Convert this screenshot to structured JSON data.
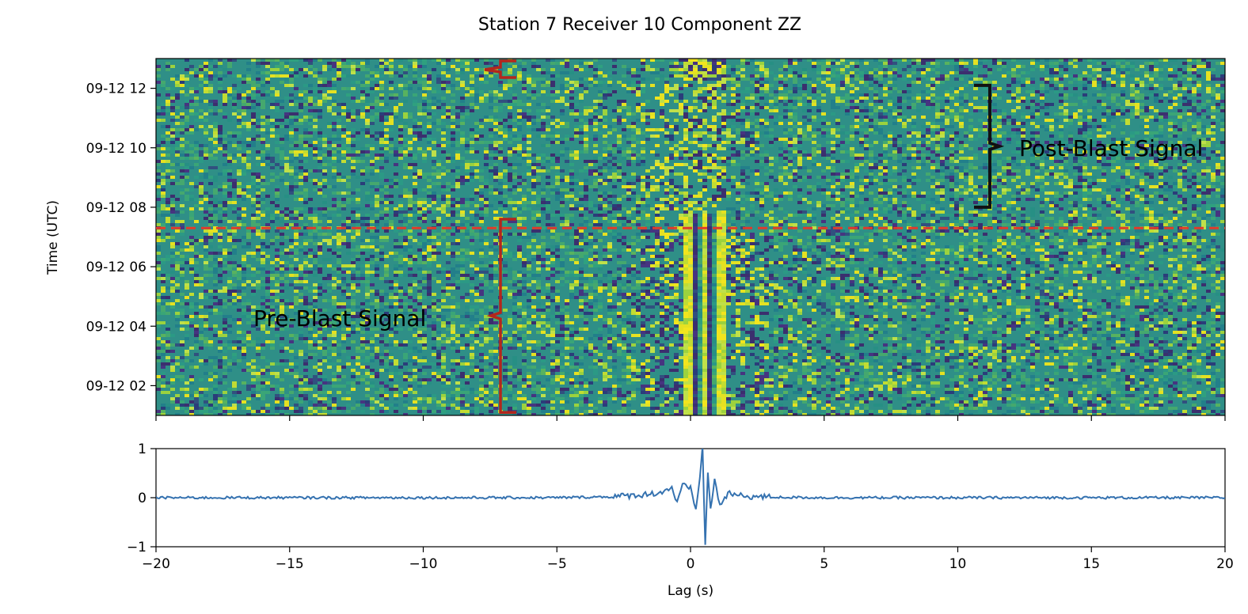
{
  "chart_data": [
    {
      "type": "heatmap",
      "title": "Station 7 Receiver 10 Component ZZ",
      "xlabel": "",
      "ylabel": "Time (UTC)",
      "xlim": [
        -20,
        20
      ],
      "ylim_hours": [
        1.0,
        13.0
      ],
      "x_ticks": [
        -20,
        -15,
        -10,
        -5,
        0,
        5,
        10,
        15,
        20
      ],
      "y_ticks": [
        {
          "hour": 2,
          "label": "09-12 02"
        },
        {
          "hour": 4,
          "label": "09-12 04"
        },
        {
          "hour": 6,
          "label": "09-12 06"
        },
        {
          "hour": 8,
          "label": "09-12 08"
        },
        {
          "hour": 10,
          "label": "09-12 10"
        },
        {
          "hour": 12,
          "label": "09-12 12"
        }
      ],
      "colormap": "viridis",
      "background_color": "#2f8f87",
      "blast_line": {
        "hour": 7.3,
        "color": "#e03a2c",
        "style": "dashed"
      },
      "annotations": [
        {
          "text": "Post-Blast Signal",
          "color": "#111111",
          "bracket_hours": [
            8.0,
            12.1
          ]
        },
        {
          "text": "Pre-Blast Signal",
          "color": "#b4261c",
          "bracket_hours": [
            1.1,
            7.6
          ]
        }
      ]
    },
    {
      "type": "line",
      "xlabel": "Lag (s)",
      "ylabel": "",
      "xlim": [
        -20,
        20
      ],
      "ylim": [
        -1,
        1
      ],
      "x_ticks": [
        -20,
        -15,
        -10,
        -5,
        0,
        5,
        10,
        15,
        20
      ],
      "x_tick_labels": [
        "−20",
        "−15",
        "−10",
        "−5",
        "0",
        "5",
        "10",
        "15",
        "20"
      ],
      "y_ticks": [
        -1,
        0,
        1
      ],
      "y_tick_labels": [
        "−1",
        "0",
        "1"
      ],
      "series_color": "#3572b0",
      "x": [
        -20,
        -15,
        -10,
        -5,
        -3,
        -2,
        -1.5,
        -1,
        -0.7,
        -0.5,
        -0.3,
        0,
        0.2,
        0.35,
        0.45,
        0.55,
        0.65,
        0.75,
        0.9,
        1.1,
        1.4,
        2,
        3,
        5,
        10,
        15,
        20
      ],
      "y": [
        0.0,
        0.0,
        0.0,
        0.0,
        0.02,
        0.05,
        0.08,
        0.12,
        0.22,
        -0.12,
        0.25,
        0.18,
        -0.25,
        0.45,
        1.0,
        -0.95,
        0.55,
        -0.25,
        0.35,
        -0.15,
        0.08,
        0.03,
        0.01,
        0.0,
        0.0,
        0.0,
        0.0
      ]
    }
  ]
}
